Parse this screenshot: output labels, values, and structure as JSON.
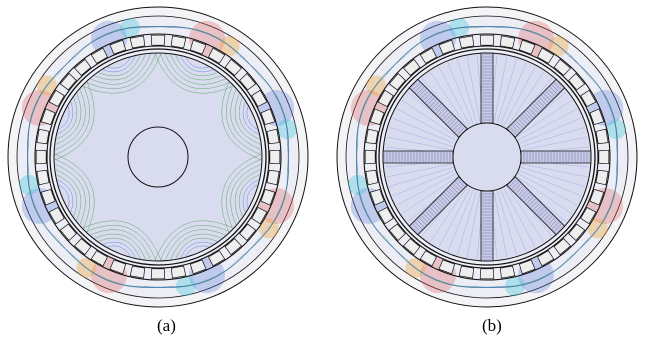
{
  "figure": {
    "panels": [
      {
        "id": "a",
        "caption": "(a)",
        "rotor_type": "solid rotor with shaft",
        "spokes": 0,
        "slots": 36
      },
      {
        "id": "b",
        "caption": "(b)",
        "rotor_type": "spoke rotor with hub",
        "spokes": 8,
        "slots": 36
      }
    ],
    "colors": {
      "outline": "#111111",
      "interior_fill": "#d9dbef",
      "field_green": "#3a9a3a",
      "field_blue": "#4a6fd8",
      "field_cyan": "#3cc6d8",
      "hot_red": "#e05050",
      "hot_orange": "#f0a030",
      "hot_yellow": "#e8e840",
      "slot_fill": "#eeeeee",
      "hatch": "#6a6a9a"
    }
  }
}
